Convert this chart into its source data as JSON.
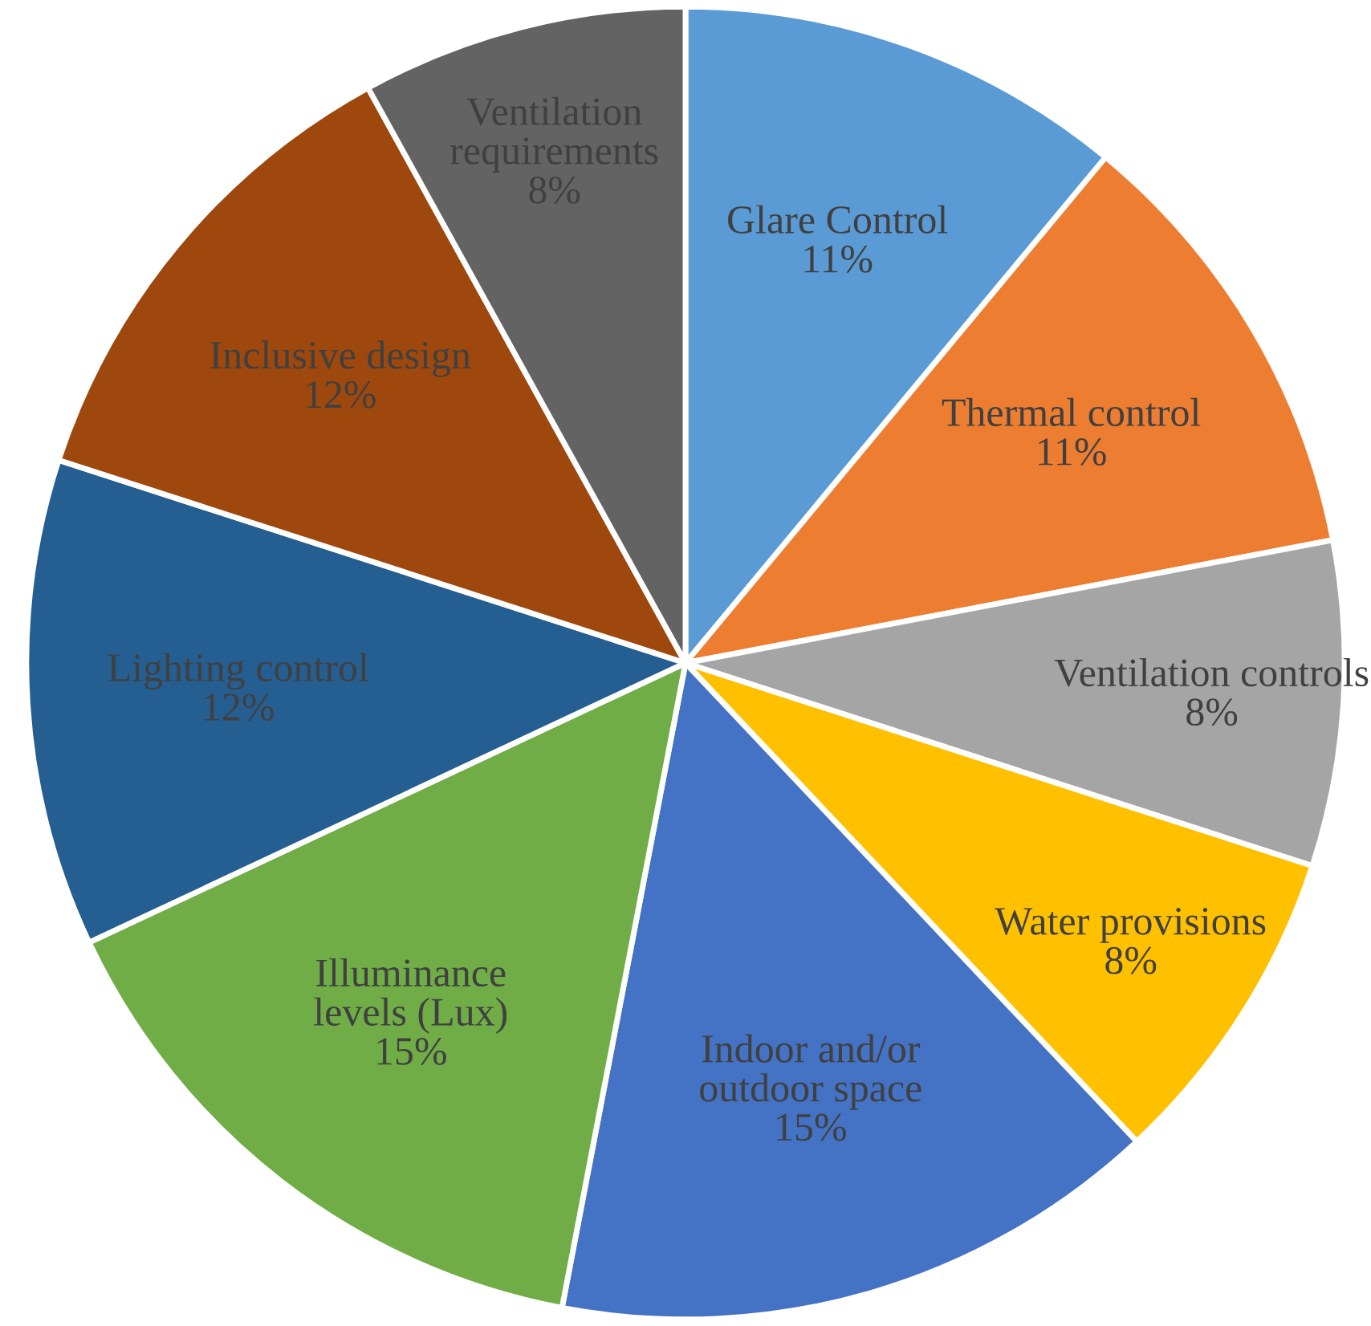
{
  "chart_data": {
    "type": "pie",
    "categories": [
      "Glare Control",
      "Thermal control",
      "Ventilation controls",
      "Water provisions",
      "Indoor and/or outdoor space",
      "Illuminance levels (Lux)",
      "Lighting control",
      "Inclusive design",
      "Ventilation requirements"
    ],
    "values": [
      11,
      11,
      8,
      8,
      15,
      15,
      12,
      12,
      8
    ],
    "value_labels": [
      "11%",
      "11%",
      "8%",
      "8%",
      "15%",
      "15%",
      "12%",
      "12%",
      "8%"
    ],
    "colors": [
      "#5b9bd5",
      "#ed7d31",
      "#a5a5a5",
      "#ffc000",
      "#4472c4",
      "#70ad47",
      "#255e91",
      "#9e480e",
      "#636363"
    ],
    "legend": false
  }
}
